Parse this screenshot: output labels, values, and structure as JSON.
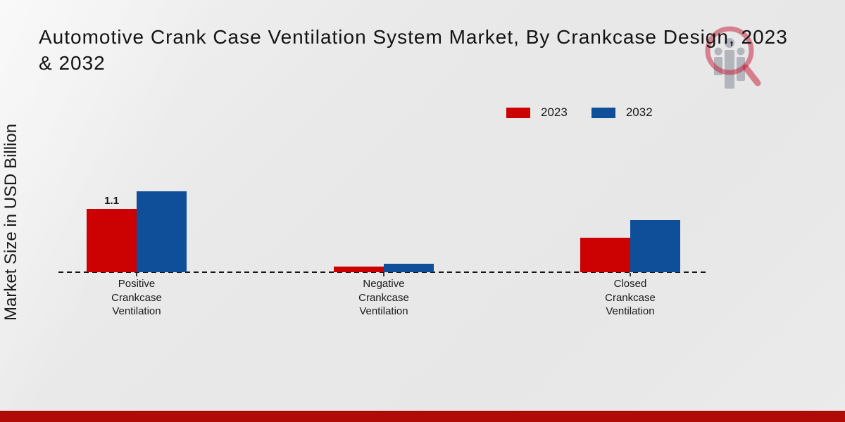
{
  "header": {
    "title_line1": "Automotive Crank Case Ventilation System Market, By Crankcase Design, 2023",
    "title_line2": "& 2032"
  },
  "y_axis_label": "Market Size in USD Billion",
  "legend": {
    "items": [
      {
        "label": "2023",
        "color": "#cc0202"
      },
      {
        "label": "2032",
        "color": "#0f4f9a"
      }
    ]
  },
  "chart_data": {
    "type": "bar",
    "title": "Automotive Crank Case Ventilation System Market, By Crankcase Design, 2023 & 2032",
    "ylabel": "Market Size in USD Billion",
    "categories": [
      "Positive Crankcase Ventilation",
      "Negative Crankcase Ventilation",
      "Closed Crankcase Ventilation"
    ],
    "category_label_lines": [
      [
        "Positive",
        "Crankcase",
        "Ventilation"
      ],
      [
        "Negative",
        "Crankcase",
        "Ventilation"
      ],
      [
        "Closed",
        "Crankcase",
        "Ventilation"
      ]
    ],
    "series": [
      {
        "name": "2023",
        "color": "#cc0202",
        "values": [
          1.1,
          0.1,
          0.6
        ]
      },
      {
        "name": "2032",
        "color": "#0f4f9a",
        "values": [
          1.4,
          0.15,
          0.9
        ]
      }
    ],
    "value_labels": [
      {
        "category_index": 0,
        "series_index": 0,
        "text": "1.1"
      }
    ],
    "ylim": [
      0,
      1.6
    ],
    "grid": false,
    "baseline_style": "dashed",
    "legend_position": "top-right"
  },
  "footer": {
    "bar_color": "#b00b06"
  },
  "logo": {
    "ring_color": "#c41935",
    "figure_color": "#a9adb5"
  }
}
